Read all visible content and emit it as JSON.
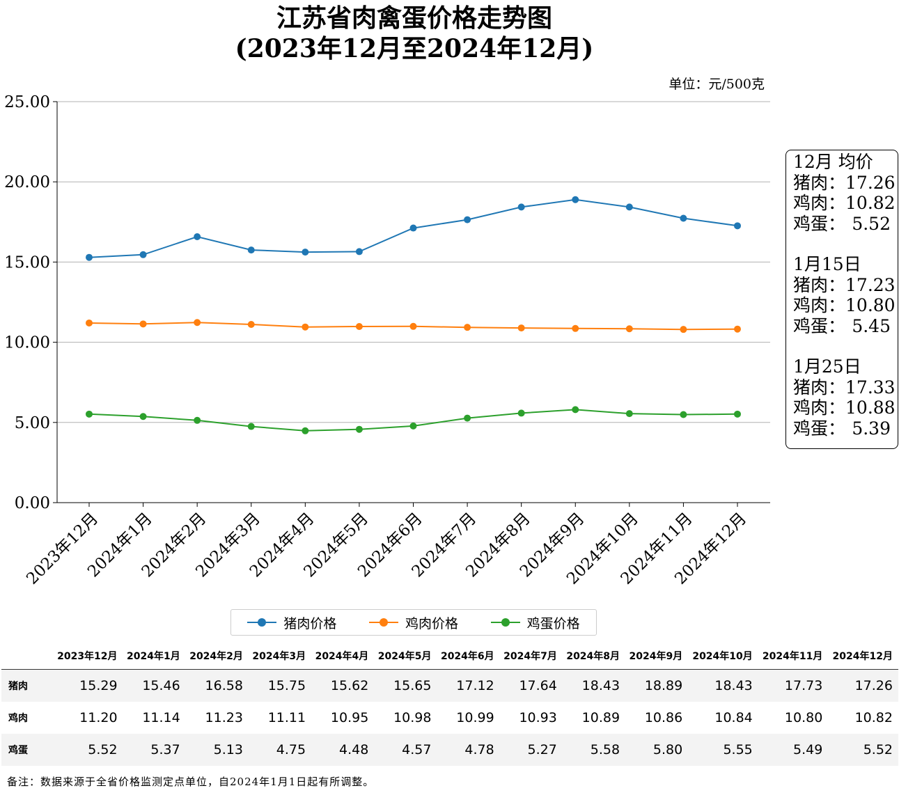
{
  "title_line1": "江苏省肉禽蛋价格走势图",
  "title_line2": "(2023年12月至2024年12月)",
  "unit": "单位：元/500克",
  "chart_data": {
    "type": "line",
    "title": "江苏省肉禽蛋价格走势图 (2023年12月至2024年12月)",
    "categories": [
      "2023年12月",
      "2024年1月",
      "2024年2月",
      "2024年3月",
      "2024年4月",
      "2024年5月",
      "2024年6月",
      "2024年7月",
      "2024年8月",
      "2024年9月",
      "2024年10月",
      "2024年11月",
      "2024年12月"
    ],
    "series": [
      {
        "name": "猪肉价格",
        "color": "#1f77b4",
        "values": [
          15.29,
          15.46,
          16.58,
          15.75,
          15.62,
          15.65,
          17.12,
          17.64,
          18.43,
          18.89,
          18.43,
          17.73,
          17.26
        ]
      },
      {
        "name": "鸡肉价格",
        "color": "#ff7f0e",
        "values": [
          11.2,
          11.14,
          11.23,
          11.11,
          10.95,
          10.98,
          10.99,
          10.93,
          10.89,
          10.86,
          10.84,
          10.8,
          10.82
        ]
      },
      {
        "name": "鸡蛋价格",
        "color": "#2ca02c",
        "values": [
          5.52,
          5.37,
          5.13,
          4.75,
          4.48,
          4.57,
          4.78,
          5.27,
          5.58,
          5.8,
          5.55,
          5.49,
          5.52
        ]
      }
    ],
    "ylim": [
      0,
      25
    ],
    "yticks": [
      "0.00",
      "5.00",
      "10.00",
      "15.00",
      "20.00",
      "25.00"
    ],
    "ytick_values": [
      0,
      5,
      10,
      15,
      20,
      25
    ],
    "grid": "horizontal",
    "legend": "bottom-center"
  },
  "annotation": {
    "groups": [
      {
        "label": "12月 均价",
        "rows": [
          {
            "name": "猪肉：",
            "value": "17.26"
          },
          {
            "name": "鸡肉：",
            "value": "10.82"
          },
          {
            "name": "鸡蛋：",
            "value": "5.52"
          }
        ]
      },
      {
        "label": "1月15日",
        "rows": [
          {
            "name": "猪肉：",
            "value": "17.23"
          },
          {
            "name": "鸡肉：",
            "value": "10.80"
          },
          {
            "name": "鸡蛋：",
            "value": "5.45"
          }
        ]
      },
      {
        "label": "1月25日",
        "rows": [
          {
            "name": "猪肉：",
            "value": "17.33"
          },
          {
            "name": "鸡肉：",
            "value": "10.88"
          },
          {
            "name": "鸡蛋：",
            "value": "5.39"
          }
        ]
      }
    ]
  },
  "table": {
    "headers": [
      "",
      "2023年12月",
      "2024年1月",
      "2024年2月",
      "2024年3月",
      "2024年4月",
      "2024年5月",
      "2024年6月",
      "2024年7月",
      "2024年8月",
      "2024年9月",
      "2024年10月",
      "2024年11月",
      "2024年12月"
    ],
    "rows": [
      {
        "label": "猪肉",
        "values": [
          "15.29",
          "15.46",
          "16.58",
          "15.75",
          "15.62",
          "15.65",
          "17.12",
          "17.64",
          "18.43",
          "18.89",
          "18.43",
          "17.73",
          "17.26"
        ]
      },
      {
        "label": "鸡肉",
        "values": [
          "11.20",
          "11.14",
          "11.23",
          "11.11",
          "10.95",
          "10.98",
          "10.99",
          "10.93",
          "10.89",
          "10.86",
          "10.84",
          "10.80",
          "10.82"
        ]
      },
      {
        "label": "鸡蛋",
        "values": [
          "5.52",
          "5.37",
          "5.13",
          "4.75",
          "4.48",
          "4.57",
          "4.78",
          "5.27",
          "5.58",
          "5.80",
          "5.55",
          "5.49",
          "5.52"
        ]
      }
    ]
  },
  "note": "备注：数据来源于全省价格监测定点单位，自2024年1月1日起有所调整。"
}
